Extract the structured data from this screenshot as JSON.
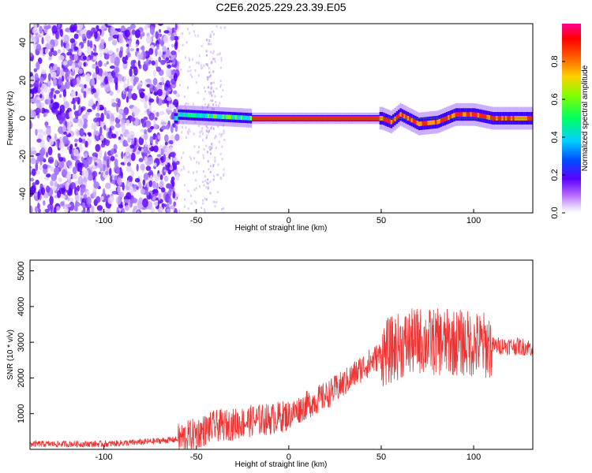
{
  "title": "C2E6.2025.229.23.39.E05",
  "chart_data": [
    {
      "type": "heatmap",
      "xlabel": "Height of straight line (km)",
      "ylabel": "Frequency (Hz)",
      "xlim": [
        -140,
        132
      ],
      "ylim": [
        -50,
        50
      ],
      "xticks": [
        -100,
        -50,
        0,
        50,
        100
      ],
      "yticks": [
        -40,
        -20,
        0,
        20,
        40
      ],
      "colorbar": {
        "label": "Normalized spectral amplitude",
        "range": [
          0,
          1
        ],
        "ticks": [
          0.0,
          0.2,
          0.4,
          0.6,
          0.8
        ],
        "tick_labels": [
          "0.0",
          "0.2",
          "0.4",
          "0.6",
          "0.8"
        ],
        "colormap": [
          "#ffffff",
          "#e0c8ff",
          "#8a2be2",
          "#3a00ff",
          "#0080ff",
          "#00e5ff",
          "#00ff40",
          "#d0ff00",
          "#ff8000",
          "#ff0000",
          "#ff0080"
        ]
      },
      "ridge_center_hz": [
        {
          "x": -60,
          "y": 2
        },
        {
          "x": -40,
          "y": 1
        },
        {
          "x": -20,
          "y": 0
        },
        {
          "x": 0,
          "y": 0
        },
        {
          "x": 50,
          "y": 0
        },
        {
          "x": 55,
          "y": -2
        },
        {
          "x": 60,
          "y": 2
        },
        {
          "x": 70,
          "y": -3
        },
        {
          "x": 80,
          "y": -2
        },
        {
          "x": 90,
          "y": 2
        },
        {
          "x": 100,
          "y": 2
        },
        {
          "x": 110,
          "y": 0
        },
        {
          "x": 132,
          "y": 0
        }
      ]
    },
    {
      "type": "line",
      "xlabel": "Height of straight line (km)",
      "ylabel": "SNR (10 * v/v)",
      "xlim": [
        -140,
        132
      ],
      "ylim": [
        0,
        5300
      ],
      "xticks": [
        -100,
        -50,
        0,
        50,
        100
      ],
      "yticks": [
        1000,
        2000,
        3000,
        4000,
        5000
      ],
      "color": "#ee3333",
      "series": [
        {
          "x": [
            -140,
            -100,
            -80,
            -60,
            -50,
            -40,
            -30,
            -20,
            -10,
            0,
            10,
            20,
            30,
            40,
            50,
            60,
            70,
            80,
            90,
            100,
            110,
            120,
            132
          ],
          "y": [
            150,
            150,
            200,
            280,
            450,
            650,
            700,
            800,
            850,
            950,
            1250,
            1500,
            1850,
            2300,
            2650,
            2900,
            3050,
            3000,
            3000,
            2950,
            2900,
            2900,
            2850
          ]
        }
      ]
    }
  ]
}
